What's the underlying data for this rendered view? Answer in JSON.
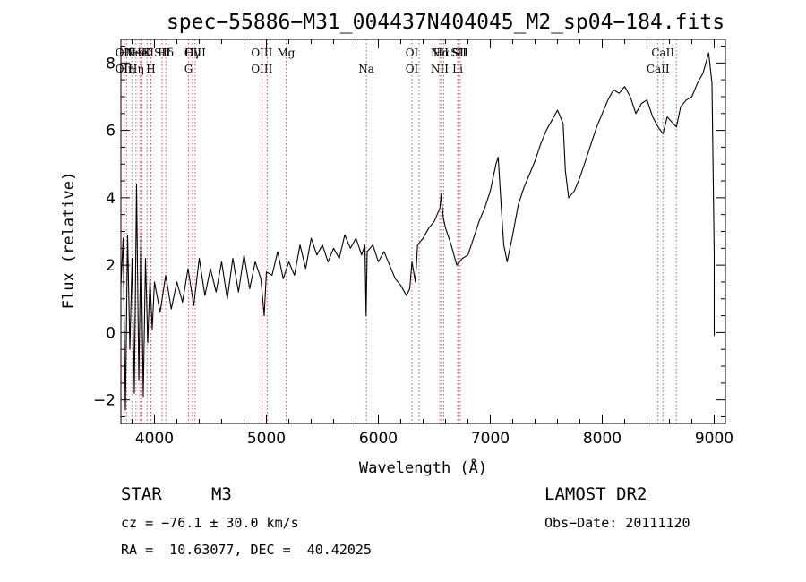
{
  "chart_data": {
    "type": "line",
    "title": "spec−55886−M31_004437N404045_M2_sp04−184.fits",
    "xlabel": "Wavelength (Å)",
    "ylabel": "Flux (relative)",
    "xlim": [
      3700,
      9100
    ],
    "ylim": [
      -2.7,
      8.7
    ],
    "xticks": [
      4000,
      5000,
      6000,
      7000,
      8000,
      9000
    ],
    "xtick_labels": [
      "4000",
      "5000",
      "6000",
      "7000",
      "8000",
      "9000"
    ],
    "yticks": [
      -2,
      0,
      2,
      4,
      6,
      8
    ],
    "ytick_labels": [
      "−2",
      "0",
      "2",
      "4",
      "6",
      "8"
    ],
    "grid": false,
    "series": [
      {
        "points": [
          [
            3700,
            1.4
          ],
          [
            3720,
            2.8
          ],
          [
            3740,
            -2.3
          ],
          [
            3760,
            2.9
          ],
          [
            3780,
            -0.5
          ],
          [
            3800,
            2.2
          ],
          [
            3820,
            -1.8
          ],
          [
            3840,
            4.4
          ],
          [
            3860,
            -1.4
          ],
          [
            3880,
            3.0
          ],
          [
            3900,
            -1.9
          ],
          [
            3920,
            2.2
          ],
          [
            3940,
            -0.3
          ],
          [
            3960,
            1.6
          ],
          [
            3980,
            0.1
          ],
          [
            4000,
            1.5
          ],
          [
            4050,
            0.6
          ],
          [
            4100,
            1.7
          ],
          [
            4150,
            0.7
          ],
          [
            4200,
            1.5
          ],
          [
            4250,
            0.9
          ],
          [
            4300,
            1.9
          ],
          [
            4350,
            0.8
          ],
          [
            4400,
            2.2
          ],
          [
            4450,
            1.1
          ],
          [
            4500,
            1.9
          ],
          [
            4550,
            1.2
          ],
          [
            4600,
            2.1
          ],
          [
            4650,
            1.0
          ],
          [
            4700,
            2.2
          ],
          [
            4750,
            1.2
          ],
          [
            4800,
            2.3
          ],
          [
            4850,
            1.3
          ],
          [
            4900,
            2.1
          ],
          [
            4950,
            1.6
          ],
          [
            4980,
            0.5
          ],
          [
            5000,
            1.8
          ],
          [
            5050,
            1.7
          ],
          [
            5100,
            2.4
          ],
          [
            5150,
            1.6
          ],
          [
            5200,
            2.1
          ],
          [
            5250,
            1.7
          ],
          [
            5300,
            2.6
          ],
          [
            5350,
            1.9
          ],
          [
            5400,
            2.8
          ],
          [
            5450,
            2.3
          ],
          [
            5500,
            2.6
          ],
          [
            5550,
            2.1
          ],
          [
            5600,
            2.5
          ],
          [
            5650,
            2.2
          ],
          [
            5700,
            2.9
          ],
          [
            5750,
            2.5
          ],
          [
            5800,
            2.8
          ],
          [
            5850,
            2.3
          ],
          [
            5880,
            2.6
          ],
          [
            5890,
            0.5
          ],
          [
            5900,
            2.4
          ],
          [
            5950,
            2.6
          ],
          [
            6000,
            2.1
          ],
          [
            6050,
            2.4
          ],
          [
            6100,
            2.0
          ],
          [
            6150,
            1.6
          ],
          [
            6200,
            1.4
          ],
          [
            6250,
            1.1
          ],
          [
            6280,
            1.3
          ],
          [
            6300,
            2.1
          ],
          [
            6330,
            1.5
          ],
          [
            6350,
            2.6
          ],
          [
            6400,
            2.8
          ],
          [
            6450,
            3.1
          ],
          [
            6500,
            3.3
          ],
          [
            6550,
            3.7
          ],
          [
            6560,
            4.1
          ],
          [
            6580,
            3.4
          ],
          [
            6600,
            3.1
          ],
          [
            6650,
            2.6
          ],
          [
            6700,
            2.0
          ],
          [
            6750,
            2.2
          ],
          [
            6800,
            2.3
          ],
          [
            6850,
            2.8
          ],
          [
            6900,
            3.3
          ],
          [
            6950,
            3.7
          ],
          [
            7000,
            4.2
          ],
          [
            7050,
            5.0
          ],
          [
            7070,
            5.2
          ],
          [
            7100,
            3.6
          ],
          [
            7120,
            2.6
          ],
          [
            7150,
            2.1
          ],
          [
            7200,
            2.9
          ],
          [
            7250,
            3.8
          ],
          [
            7300,
            4.3
          ],
          [
            7350,
            4.7
          ],
          [
            7400,
            5.1
          ],
          [
            7450,
            5.6
          ],
          [
            7500,
            6.0
          ],
          [
            7550,
            6.3
          ],
          [
            7600,
            6.6
          ],
          [
            7650,
            6.2
          ],
          [
            7670,
            4.8
          ],
          [
            7700,
            4.0
          ],
          [
            7750,
            4.2
          ],
          [
            7800,
            4.6
          ],
          [
            7850,
            5.1
          ],
          [
            7900,
            5.6
          ],
          [
            7950,
            6.1
          ],
          [
            8000,
            6.5
          ],
          [
            8050,
            6.9
          ],
          [
            8100,
            7.2
          ],
          [
            8150,
            7.1
          ],
          [
            8200,
            7.3
          ],
          [
            8250,
            7.0
          ],
          [
            8300,
            6.5
          ],
          [
            8350,
            6.8
          ],
          [
            8400,
            6.9
          ],
          [
            8450,
            6.4
          ],
          [
            8498,
            6.1
          ],
          [
            8542,
            5.9
          ],
          [
            8580,
            6.4
          ],
          [
            8662,
            6.1
          ],
          [
            8700,
            6.7
          ],
          [
            8750,
            6.9
          ],
          [
            8800,
            7.0
          ],
          [
            8850,
            7.4
          ],
          [
            8900,
            7.7
          ],
          [
            8950,
            8.3
          ],
          [
            8980,
            7.4
          ],
          [
            9000,
            2.3
          ],
          [
            9000,
            -0.1
          ]
        ]
      }
    ],
    "lines": [
      {
        "x": 3727,
        "labels": [
          "OII",
          "OII"
        ]
      },
      {
        "x": 3750,
        "labels": [
          "Hθ",
          "Hη"
        ]
      },
      {
        "x": 3798,
        "labels": [
          "",
          ""
        ]
      },
      {
        "x": 3835,
        "labels": [
          "",
          "Hη"
        ]
      },
      {
        "x": 3869,
        "labels": [
          "NeIII",
          ""
        ]
      },
      {
        "x": 3889,
        "labels": [
          "HeI",
          ""
        ]
      },
      {
        "x": 3934,
        "labels": [
          "K",
          ""
        ]
      },
      {
        "x": 3968,
        "labels": [
          "",
          "H"
        ]
      },
      {
        "x": 4068,
        "labels": [
          "SII",
          ""
        ]
      },
      {
        "x": 4101,
        "labels": [
          "Hδ",
          ""
        ]
      },
      {
        "x": 4304,
        "labels": [
          "",
          "G"
        ]
      },
      {
        "x": 4340,
        "labels": [
          "Hγ",
          ""
        ]
      },
      {
        "x": 4363,
        "labels": [
          "OIII",
          ""
        ]
      },
      {
        "x": 4959,
        "labels": [
          "OIII",
          "OIII"
        ]
      },
      {
        "x": 5007,
        "labels": [
          "",
          ""
        ]
      },
      {
        "x": 5175,
        "labels": [
          "Mg",
          ""
        ]
      },
      {
        "x": 5893,
        "labels": [
          "",
          "Na"
        ]
      },
      {
        "x": 6300,
        "labels": [
          "OI",
          "OI"
        ]
      },
      {
        "x": 6364,
        "labels": [
          "",
          ""
        ]
      },
      {
        "x": 6548,
        "labels": [
          "NII",
          "NII"
        ]
      },
      {
        "x": 6563,
        "labels": [
          "Hα",
          ""
        ]
      },
      {
        "x": 6583,
        "labels": [
          "",
          ""
        ]
      },
      {
        "x": 6708,
        "labels": [
          "",
          "Li"
        ]
      },
      {
        "x": 6717,
        "labels": [
          "SII",
          ""
        ]
      },
      {
        "x": 6731,
        "labels": [
          "SII",
          ""
        ]
      },
      {
        "x": 8498,
        "labels": [
          "",
          "CaII"
        ]
      },
      {
        "x": 8542,
        "labels": [
          "CaII",
          ""
        ]
      },
      {
        "x": 8662,
        "labels": [
          "",
          ""
        ]
      }
    ]
  },
  "info": {
    "object_class": "STAR",
    "subclass": "M3",
    "survey": "LAMOST DR2",
    "cz": "cz = −76.1 ± 30.0 km/s",
    "obs_date": "Obs−Date: 20111120",
    "coords": "RA =  10.63077, DEC =  40.42025"
  }
}
